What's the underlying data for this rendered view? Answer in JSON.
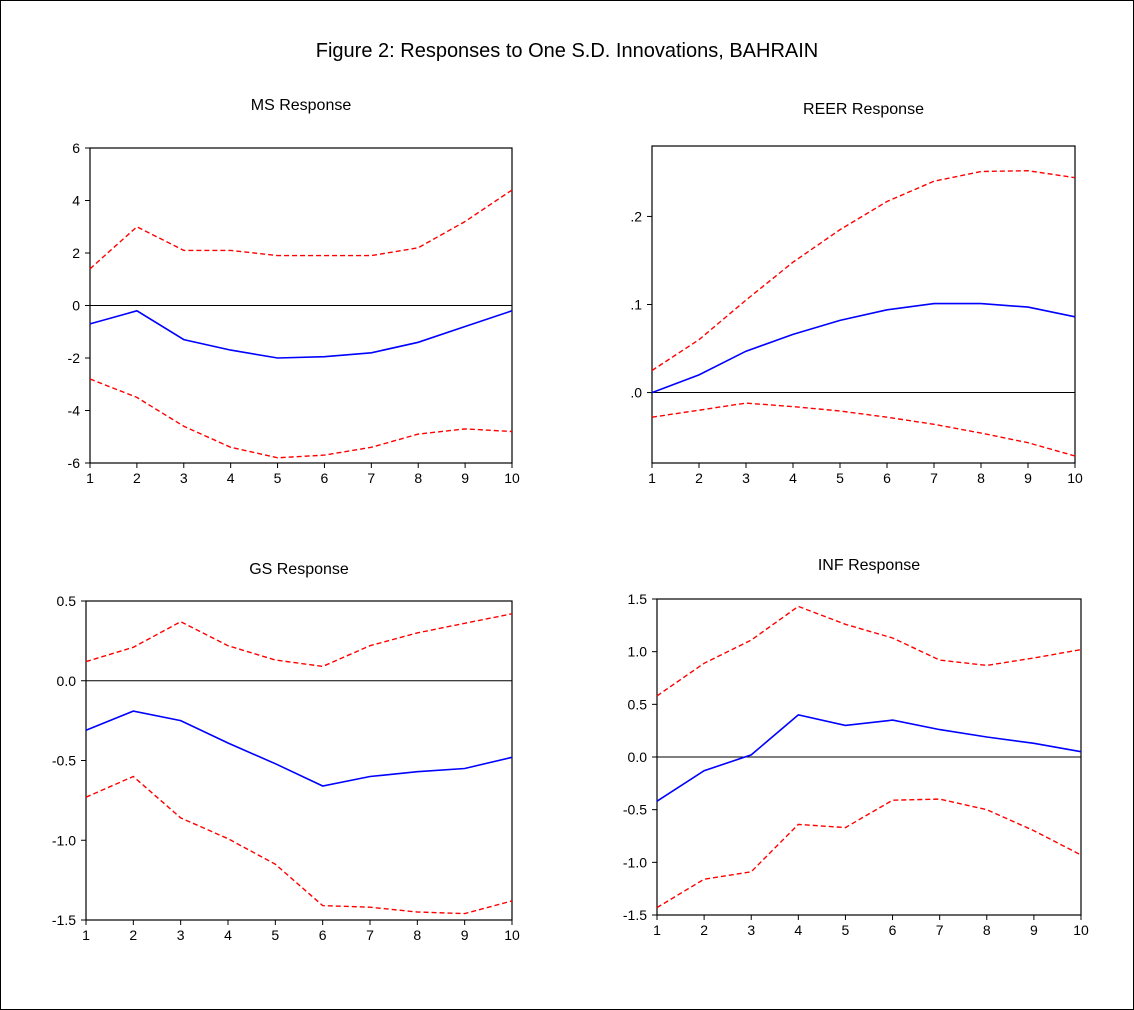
{
  "figure_title": "Figure 2: Responses to One S.D. Innovations, BAHRAIN",
  "colors": {
    "response": "#0000ff",
    "bands": "#ff0000",
    "axis": "#000000",
    "zero_line": "#000000"
  },
  "chart_data": [
    {
      "type": "line",
      "title": "MS Response",
      "x": [
        1,
        2,
        3,
        4,
        5,
        6,
        7,
        8,
        9,
        10
      ],
      "x_tick_labels": [
        "1",
        "2",
        "3",
        "4",
        "5",
        "6",
        "7",
        "8",
        "9",
        "10"
      ],
      "ylim": [
        -6,
        6
      ],
      "y_ticks": [
        6,
        4,
        2,
        0,
        -2,
        -4,
        -6
      ],
      "y_tick_labels": [
        "6",
        "4",
        "2",
        "0",
        "-2",
        "-4",
        "-6"
      ],
      "series": [
        {
          "role": "response",
          "style": "solid",
          "values": [
            -0.7,
            -0.2,
            -1.3,
            -1.7,
            -2.0,
            -1.95,
            -1.8,
            -1.4,
            -0.8,
            -0.2
          ]
        },
        {
          "role": "upper",
          "style": "dashed",
          "values": [
            1.4,
            3.0,
            2.1,
            2.1,
            1.9,
            1.9,
            1.9,
            2.2,
            3.2,
            4.4
          ]
        },
        {
          "role": "lower",
          "style": "dashed",
          "values": [
            -2.8,
            -3.5,
            -4.6,
            -5.4,
            -5.8,
            -5.7,
            -5.4,
            -4.9,
            -4.7,
            -4.8
          ]
        }
      ],
      "grid": false,
      "zero_line": true
    },
    {
      "type": "line",
      "title": "REER Response",
      "x": [
        1,
        2,
        3,
        4,
        5,
        6,
        7,
        8,
        9,
        10
      ],
      "x_tick_labels": [
        "1",
        "2",
        "3",
        "4",
        "5",
        "6",
        "7",
        "8",
        "9",
        "10"
      ],
      "ylim": [
        -0.08,
        0.28
      ],
      "y_ticks": [
        0.2,
        0.1,
        0.0
      ],
      "y_tick_labels": [
        ".2",
        ".1",
        ".0"
      ],
      "series": [
        {
          "role": "response",
          "style": "solid",
          "values": [
            0.0,
            0.02,
            0.047,
            0.066,
            0.082,
            0.094,
            0.101,
            0.101,
            0.097,
            0.086
          ]
        },
        {
          "role": "upper",
          "style": "dashed",
          "values": [
            0.025,
            0.06,
            0.105,
            0.148,
            0.185,
            0.217,
            0.24,
            0.251,
            0.252,
            0.244
          ]
        },
        {
          "role": "lower",
          "style": "dashed",
          "values": [
            -0.028,
            -0.02,
            -0.012,
            -0.016,
            -0.021,
            -0.028,
            -0.036,
            -0.046,
            -0.057,
            -0.072
          ]
        }
      ],
      "grid": false,
      "zero_line": true
    },
    {
      "type": "line",
      "title": "GS Response",
      "x": [
        1,
        2,
        3,
        4,
        5,
        6,
        7,
        8,
        9,
        10
      ],
      "x_tick_labels": [
        "1",
        "2",
        "3",
        "4",
        "5",
        "6",
        "7",
        "8",
        "9",
        "10"
      ],
      "ylim": [
        -1.5,
        0.5
      ],
      "y_ticks": [
        0.5,
        0.0,
        -0.5,
        -1.0,
        -1.5
      ],
      "y_tick_labels": [
        "0.5",
        "0.0",
        "-0.5",
        "-1.0",
        "-1.5"
      ],
      "series": [
        {
          "role": "response",
          "style": "solid",
          "values": [
            -0.31,
            -0.19,
            -0.25,
            -0.39,
            -0.52,
            -0.66,
            -0.6,
            -0.57,
            -0.55,
            -0.48
          ]
        },
        {
          "role": "upper",
          "style": "dashed",
          "values": [
            0.12,
            0.21,
            0.37,
            0.22,
            0.13,
            0.09,
            0.22,
            0.3,
            0.36,
            0.42
          ]
        },
        {
          "role": "lower",
          "style": "dashed",
          "values": [
            -0.73,
            -0.6,
            -0.86,
            -0.99,
            -1.15,
            -1.41,
            -1.42,
            -1.45,
            -1.46,
            -1.38
          ]
        }
      ],
      "grid": false,
      "zero_line": true
    },
    {
      "type": "line",
      "title": "INF Response",
      "x": [
        1,
        2,
        3,
        4,
        5,
        6,
        7,
        8,
        9,
        10
      ],
      "x_tick_labels": [
        "1",
        "2",
        "3",
        "4",
        "5",
        "6",
        "7",
        "8",
        "9",
        "10"
      ],
      "ylim": [
        -1.5,
        1.5
      ],
      "y_ticks": [
        1.5,
        1.0,
        0.5,
        0.0,
        -0.5,
        -1.0,
        -1.5
      ],
      "y_tick_labels": [
        "1.5",
        "1.0",
        "0.5",
        "0.0",
        "-0.5",
        "-1.0",
        "-1.5"
      ],
      "series": [
        {
          "role": "response",
          "style": "solid",
          "values": [
            -0.42,
            -0.13,
            0.02,
            0.4,
            0.3,
            0.35,
            0.26,
            0.19,
            0.13,
            0.05
          ]
        },
        {
          "role": "upper",
          "style": "dashed",
          "values": [
            0.58,
            0.89,
            1.11,
            1.43,
            1.26,
            1.13,
            0.92,
            0.87,
            0.94,
            1.02
          ]
        },
        {
          "role": "lower",
          "style": "dashed",
          "values": [
            -1.43,
            -1.16,
            -1.09,
            -0.64,
            -0.67,
            -0.41,
            -0.4,
            -0.5,
            -0.7,
            -0.93
          ]
        }
      ],
      "grid": false,
      "zero_line": true
    }
  ]
}
